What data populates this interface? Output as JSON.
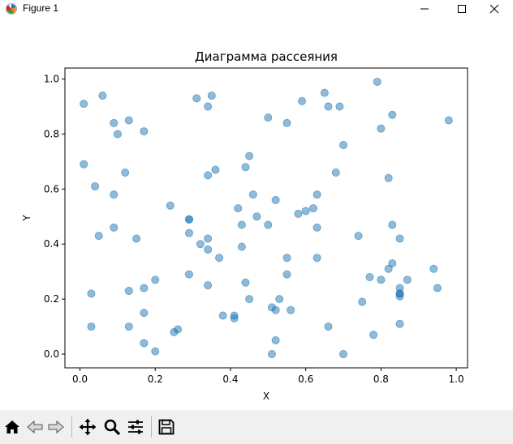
{
  "window": {
    "title": "Figure 1",
    "icons": [
      "matplotlib-icon",
      "minimize-icon",
      "maximize-icon",
      "close-icon"
    ]
  },
  "toolbar": {
    "items": [
      "home-icon",
      "back-icon",
      "forward-icon",
      "pan-icon",
      "zoom-icon",
      "configure-subplots-icon",
      "save-icon"
    ]
  },
  "colors": {
    "point": "#1f77b4",
    "axes": "#000000"
  },
  "chart_data": {
    "type": "scatter",
    "title": "Диаграмма рассеяния",
    "xlabel": "X",
    "ylabel": "Y",
    "xlim": [
      -0.04,
      1.03
    ],
    "ylim": [
      -0.05,
      1.04
    ],
    "xticks": [
      0.0,
      0.2,
      0.4,
      0.6,
      0.8,
      1.0
    ],
    "yticks": [
      0.0,
      0.2,
      0.4,
      0.6,
      0.8,
      1.0
    ],
    "xtick_labels": [
      "0.0",
      "0.2",
      "0.4",
      "0.6",
      "0.8",
      "1.0"
    ],
    "ytick_labels": [
      "0.0",
      "0.2",
      "0.4",
      "0.6",
      "0.8",
      "1.0"
    ],
    "grid": false,
    "alpha": 0.5,
    "x": [
      0.01,
      0.06,
      0.09,
      0.13,
      0.17,
      0.1,
      0.31,
      0.34,
      0.35,
      0.5,
      0.55,
      0.59,
      0.65,
      0.66,
      0.69,
      0.79,
      0.83,
      0.8,
      0.98,
      0.7,
      0.01,
      0.04,
      0.09,
      0.12,
      0.24,
      0.34,
      0.36,
      0.44,
      0.45,
      0.42,
      0.46,
      0.47,
      0.52,
      0.58,
      0.6,
      0.62,
      0.63,
      0.68,
      0.82,
      0.09,
      0.05,
      0.15,
      0.29,
      0.32,
      0.34,
      0.34,
      0.37,
      0.43,
      0.43,
      0.5,
      0.55,
      0.63,
      0.63,
      0.74,
      0.83,
      0.85,
      0.03,
      0.13,
      0.17,
      0.2,
      0.29,
      0.34,
      0.44,
      0.38,
      0.41,
      0.41,
      0.45,
      0.51,
      0.52,
      0.53,
      0.55,
      0.56,
      0.66,
      0.75,
      0.77,
      0.8,
      0.82,
      0.83,
      0.85,
      0.85,
      0.85,
      0.87,
      0.94,
      0.95,
      0.03,
      0.13,
      0.17,
      0.17,
      0.2,
      0.25,
      0.26,
      0.51,
      0.52,
      0.7,
      0.78,
      0.85,
      0.85,
      0.29,
      0.29
    ],
    "y": [
      0.91,
      0.94,
      0.84,
      0.85,
      0.81,
      0.8,
      0.93,
      0.9,
      0.94,
      0.86,
      0.84,
      0.92,
      0.95,
      0.9,
      0.9,
      0.99,
      0.87,
      0.82,
      0.85,
      0.76,
      0.69,
      0.61,
      0.58,
      0.66,
      0.54,
      0.65,
      0.67,
      0.68,
      0.72,
      0.53,
      0.58,
      0.5,
      0.56,
      0.51,
      0.52,
      0.53,
      0.58,
      0.66,
      0.64,
      0.46,
      0.43,
      0.42,
      0.44,
      0.4,
      0.42,
      0.38,
      0.35,
      0.47,
      0.39,
      0.47,
      0.35,
      0.35,
      0.46,
      0.43,
      0.47,
      0.42,
      0.22,
      0.23,
      0.24,
      0.27,
      0.29,
      0.25,
      0.26,
      0.14,
      0.14,
      0.13,
      0.2,
      0.17,
      0.16,
      0.2,
      0.29,
      0.16,
      0.1,
      0.19,
      0.28,
      0.27,
      0.31,
      0.33,
      0.24,
      0.22,
      0.21,
      0.27,
      0.31,
      0.24,
      0.1,
      0.1,
      0.15,
      0.04,
      0.01,
      0.08,
      0.09,
      0.0,
      0.05,
      0.0,
      0.07,
      0.11,
      0.22,
      0.49,
      0.49
    ]
  }
}
